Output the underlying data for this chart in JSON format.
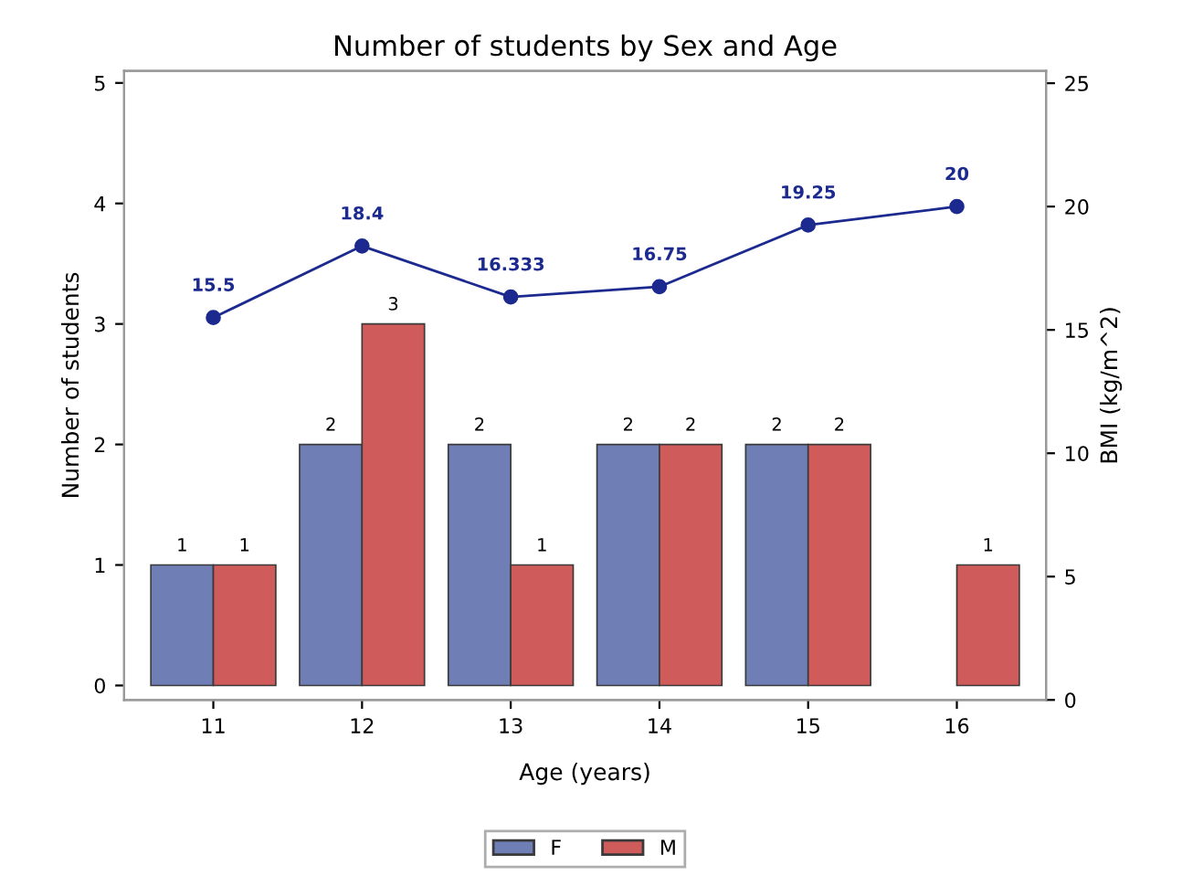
{
  "chart_data": {
    "type": "bar",
    "title": "Number of students by Sex and Age",
    "xlabel": "Age (years)",
    "ylabel": "Number of students",
    "y2label": "BMI (kg/m^2)",
    "categories": [
      "11",
      "12",
      "13",
      "14",
      "15",
      "16"
    ],
    "series": [
      {
        "name": "F",
        "color": "#6f7fb6",
        "values": [
          1,
          2,
          2,
          2,
          2,
          null
        ]
      },
      {
        "name": "M",
        "color": "#d05b5b",
        "values": [
          1,
          3,
          1,
          2,
          2,
          1
        ]
      },
      {
        "type": "line",
        "axis": "y2",
        "color": "#1c2a8f",
        "values": [
          15.5,
          18.4,
          16.333,
          16.75,
          19.25,
          20
        ]
      }
    ],
    "ylim": [
      -0.12,
      5.1
    ],
    "yticks": [
      0,
      1,
      2,
      3,
      4,
      5
    ],
    "y2lim": [
      0,
      25.5
    ],
    "y2ticks": [
      0,
      5,
      10,
      15,
      20,
      25
    ],
    "data_labels": true,
    "marker": "circle",
    "line_style": "solid",
    "grid": false,
    "legend": "bottom"
  }
}
